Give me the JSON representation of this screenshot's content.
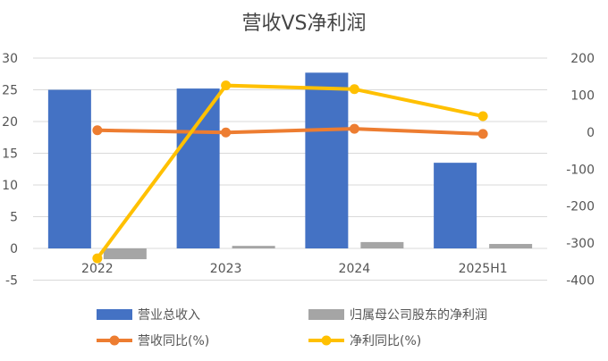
{
  "chart_data": {
    "type": "bar",
    "title": "营收VS净利润",
    "categories": [
      "2022",
      "2023",
      "2024",
      "2025H1"
    ],
    "y_left": {
      "ylim": [
        -5,
        30
      ],
      "ticks": [
        30,
        25,
        20,
        15,
        10,
        5,
        0,
        -5
      ]
    },
    "y_right": {
      "ylim": [
        -400,
        200
      ],
      "ticks": [
        200,
        100,
        0,
        -100,
        -200,
        -300,
        -400
      ]
    },
    "grid": true,
    "legend_position": "bottom",
    "series": [
      {
        "name": "营业总收入",
        "type": "bar",
        "axis": "left",
        "color": "#4472C4",
        "values": [
          25.0,
          25.2,
          27.7,
          13.5
        ]
      },
      {
        "name": "归属母公司股东的净利润",
        "type": "bar",
        "axis": "left",
        "color": "#A5A5A5",
        "values": [
          -1.7,
          0.4,
          1.0,
          0.7
        ]
      },
      {
        "name": "营收同比(%)",
        "type": "line",
        "axis": "right",
        "color": "#ED7D31",
        "values": [
          5,
          -1,
          9,
          -5
        ]
      },
      {
        "name": "净利同比(%)",
        "type": "line",
        "axis": "right",
        "color": "#FFC000",
        "values": [
          -341,
          126,
          116,
          43
        ]
      }
    ]
  }
}
